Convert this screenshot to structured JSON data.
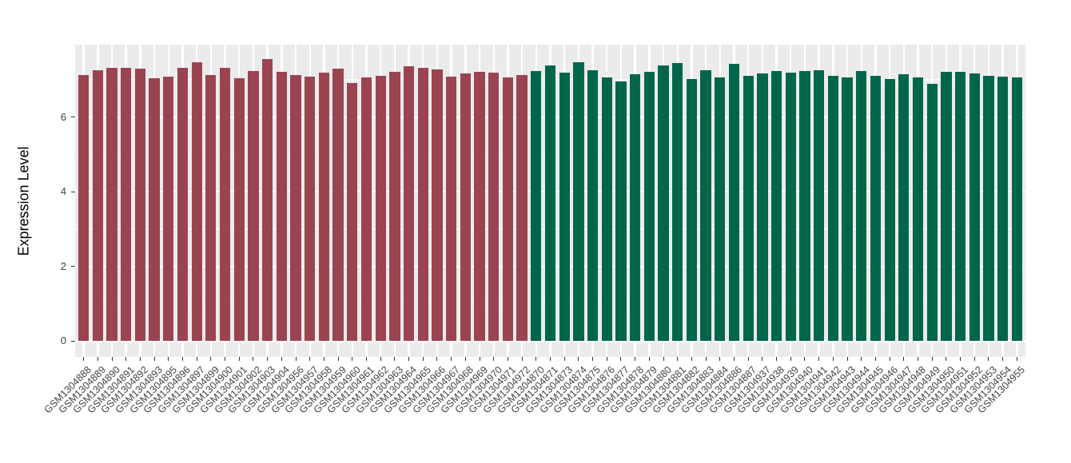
{
  "chart_data": {
    "type": "bar",
    "title": "",
    "xlabel": "",
    "ylabel": "Expression Level",
    "y_ticks": [
      0,
      2,
      4,
      6
    ],
    "y_minor_ticks": [
      1,
      3,
      5,
      7
    ],
    "ylim": [
      -0.42,
      7.94
    ],
    "grid": true,
    "legend": false,
    "axis_padding": 0.6,
    "bar_width_fraction": 0.75,
    "groups": {
      "group1": {
        "color": "#9A4452"
      },
      "group2": {
        "color": "#00664B"
      }
    },
    "samples": [
      {
        "id": "GSM1304888",
        "value": 7.13,
        "group": "group1"
      },
      {
        "id": "GSM1304889",
        "value": 7.25,
        "group": "group1"
      },
      {
        "id": "GSM1304890",
        "value": 7.31,
        "group": "group1"
      },
      {
        "id": "GSM1304891",
        "value": 7.31,
        "group": "group1"
      },
      {
        "id": "GSM1304892",
        "value": 7.3,
        "group": "group1"
      },
      {
        "id": "GSM1304893",
        "value": 7.04,
        "group": "group1"
      },
      {
        "id": "GSM1304895",
        "value": 7.08,
        "group": "group1"
      },
      {
        "id": "GSM1304896",
        "value": 7.32,
        "group": "group1"
      },
      {
        "id": "GSM1304897",
        "value": 7.48,
        "group": "group1"
      },
      {
        "id": "GSM1304899",
        "value": 7.13,
        "group": "group1"
      },
      {
        "id": "GSM1304900",
        "value": 7.32,
        "group": "group1"
      },
      {
        "id": "GSM1304901",
        "value": 7.05,
        "group": "group1"
      },
      {
        "id": "GSM1304902",
        "value": 7.23,
        "group": "group1"
      },
      {
        "id": "GSM1304903",
        "value": 7.56,
        "group": "group1"
      },
      {
        "id": "GSM1304904",
        "value": 7.21,
        "group": "group1"
      },
      {
        "id": "GSM1304956",
        "value": 7.12,
        "group": "group1"
      },
      {
        "id": "GSM1304957",
        "value": 7.08,
        "group": "group1"
      },
      {
        "id": "GSM1304958",
        "value": 7.19,
        "group": "group1"
      },
      {
        "id": "GSM1304959",
        "value": 7.29,
        "group": "group1"
      },
      {
        "id": "GSM1304960",
        "value": 6.91,
        "group": "group1"
      },
      {
        "id": "GSM1304961",
        "value": 7.06,
        "group": "group1"
      },
      {
        "id": "GSM1304962",
        "value": 7.11,
        "group": "group1"
      },
      {
        "id": "GSM1304963",
        "value": 7.22,
        "group": "group1"
      },
      {
        "id": "GSM1304964",
        "value": 7.36,
        "group": "group1"
      },
      {
        "id": "GSM1304965",
        "value": 7.33,
        "group": "group1"
      },
      {
        "id": "GSM1304966",
        "value": 7.28,
        "group": "group1"
      },
      {
        "id": "GSM1304967",
        "value": 7.09,
        "group": "group1"
      },
      {
        "id": "GSM1304968",
        "value": 7.16,
        "group": "group1"
      },
      {
        "id": "GSM1304969",
        "value": 7.21,
        "group": "group1"
      },
      {
        "id": "GSM1304970",
        "value": 7.19,
        "group": "group1"
      },
      {
        "id": "GSM1304971",
        "value": 7.06,
        "group": "group1"
      },
      {
        "id": "GSM1304972",
        "value": 7.13,
        "group": "group1"
      },
      {
        "id": "GSM1304870",
        "value": 7.24,
        "group": "group2"
      },
      {
        "id": "GSM1304871",
        "value": 7.39,
        "group": "group2"
      },
      {
        "id": "GSM1304873",
        "value": 7.19,
        "group": "group2"
      },
      {
        "id": "GSM1304874",
        "value": 7.47,
        "group": "group2"
      },
      {
        "id": "GSM1304875",
        "value": 7.26,
        "group": "group2"
      },
      {
        "id": "GSM1304876",
        "value": 7.07,
        "group": "group2"
      },
      {
        "id": "GSM1304877",
        "value": 6.96,
        "group": "group2"
      },
      {
        "id": "GSM1304878",
        "value": 7.15,
        "group": "group2"
      },
      {
        "id": "GSM1304879",
        "value": 7.21,
        "group": "group2"
      },
      {
        "id": "GSM1304880",
        "value": 7.39,
        "group": "group2"
      },
      {
        "id": "GSM1304881",
        "value": 7.44,
        "group": "group2"
      },
      {
        "id": "GSM1304882",
        "value": 7.02,
        "group": "group2"
      },
      {
        "id": "GSM1304883",
        "value": 7.26,
        "group": "group2"
      },
      {
        "id": "GSM1304884",
        "value": 7.06,
        "group": "group2"
      },
      {
        "id": "GSM1304886",
        "value": 7.43,
        "group": "group2"
      },
      {
        "id": "GSM1304887",
        "value": 7.11,
        "group": "group2"
      },
      {
        "id": "GSM1304937",
        "value": 7.18,
        "group": "group2"
      },
      {
        "id": "GSM1304938",
        "value": 7.24,
        "group": "group2"
      },
      {
        "id": "GSM1304939",
        "value": 7.19,
        "group": "group2"
      },
      {
        "id": "GSM1304940",
        "value": 7.24,
        "group": "group2"
      },
      {
        "id": "GSM1304941",
        "value": 7.25,
        "group": "group2"
      },
      {
        "id": "GSM1304942",
        "value": 7.1,
        "group": "group2"
      },
      {
        "id": "GSM1304943",
        "value": 7.06,
        "group": "group2"
      },
      {
        "id": "GSM1304944",
        "value": 7.24,
        "group": "group2"
      },
      {
        "id": "GSM1304945",
        "value": 7.1,
        "group": "group2"
      },
      {
        "id": "GSM1304946",
        "value": 7.03,
        "group": "group2"
      },
      {
        "id": "GSM1304947",
        "value": 7.15,
        "group": "group2"
      },
      {
        "id": "GSM1304948",
        "value": 7.07,
        "group": "group2"
      },
      {
        "id": "GSM1304949",
        "value": 6.89,
        "group": "group2"
      },
      {
        "id": "GSM1304950",
        "value": 7.21,
        "group": "group2"
      },
      {
        "id": "GSM1304951",
        "value": 7.22,
        "group": "group2"
      },
      {
        "id": "GSM1304952",
        "value": 7.16,
        "group": "group2"
      },
      {
        "id": "GSM1304953",
        "value": 7.11,
        "group": "group2"
      },
      {
        "id": "GSM1304954",
        "value": 7.08,
        "group": "group2"
      },
      {
        "id": "GSM1304955",
        "value": 7.07,
        "group": "group2"
      }
    ]
  }
}
